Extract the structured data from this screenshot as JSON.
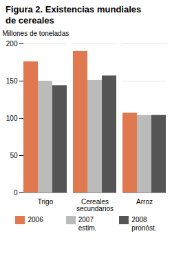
{
  "chart_data": {
    "type": "bar",
    "title": "Figura 2. Existencias mundiales\nde cereales",
    "y_label": "Millones de toneladas",
    "categories": [
      "Trigo",
      "Cereales\nsecundarios",
      "Arroz"
    ],
    "series": [
      {
        "name": "2006",
        "color": "#E07850",
        "values": [
          176,
          190,
          107
        ]
      },
      {
        "name": "2007\nestim.",
        "color": "#BBBBBB",
        "values": [
          150,
          151,
          104
        ]
      },
      {
        "name": "2008\npronóst.",
        "color": "#555555",
        "values": [
          144,
          157,
          104
        ]
      }
    ],
    "ylim": [
      0,
      200
    ],
    "yticks": [
      0,
      50,
      100,
      150,
      200
    ],
    "grid": true,
    "legend": "bottom"
  }
}
